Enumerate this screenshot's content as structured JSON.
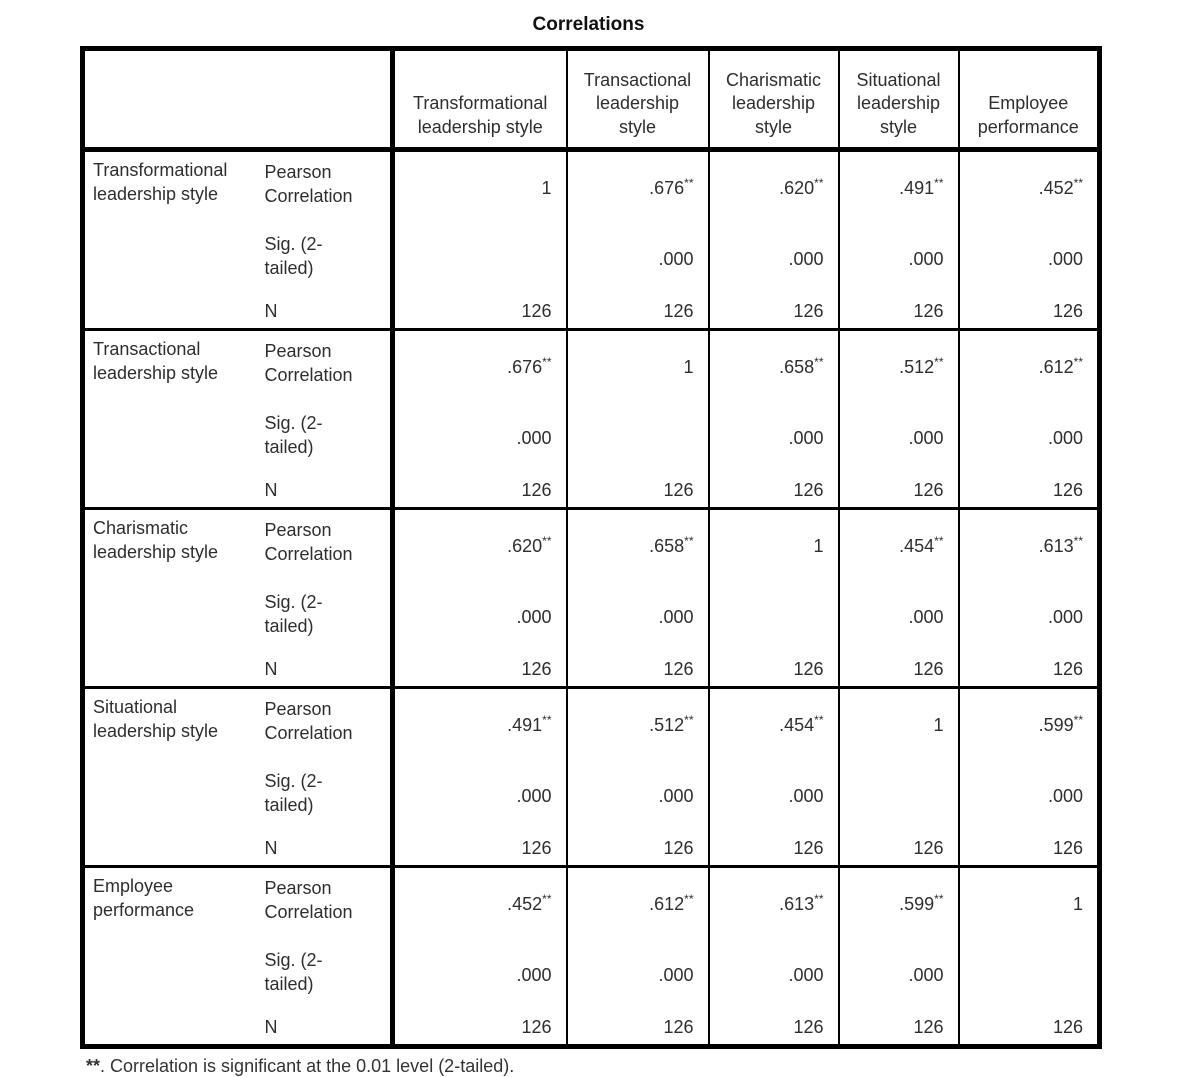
{
  "title": "Correlations",
  "table": {
    "corner": "",
    "columns": [
      "Transformational\nleadership style",
      "Transactional\nleadership\nstyle",
      "Charismatic\nleadership\nstyle",
      "Situational\nleadership\nstyle",
      "Employee\nperformance"
    ],
    "stat_labels": [
      "Pearson\nCorrelation",
      "Sig. (2-\ntailed)",
      "N"
    ],
    "groups": [
      {
        "label": "Transformational\nleadership style",
        "pearson": [
          {
            "v": "1",
            "m": ""
          },
          {
            "v": ".676",
            "m": "**"
          },
          {
            "v": ".620",
            "m": "**"
          },
          {
            "v": ".491",
            "m": "**"
          },
          {
            "v": ".452",
            "m": "**"
          }
        ],
        "sig": [
          "",
          ".000",
          ".000",
          ".000",
          ".000"
        ],
        "n": [
          "126",
          "126",
          "126",
          "126",
          "126"
        ]
      },
      {
        "label": "Transactional\nleadership style",
        "pearson": [
          {
            "v": ".676",
            "m": "**"
          },
          {
            "v": "1",
            "m": ""
          },
          {
            "v": ".658",
            "m": "**"
          },
          {
            "v": ".512",
            "m": "**"
          },
          {
            "v": ".612",
            "m": "**"
          }
        ],
        "sig": [
          ".000",
          "",
          ".000",
          ".000",
          ".000"
        ],
        "n": [
          "126",
          "126",
          "126",
          "126",
          "126"
        ]
      },
      {
        "label": "Charismatic\nleadership style",
        "pearson": [
          {
            "v": ".620",
            "m": "**"
          },
          {
            "v": ".658",
            "m": "**"
          },
          {
            "v": "1",
            "m": ""
          },
          {
            "v": ".454",
            "m": "**"
          },
          {
            "v": ".613",
            "m": "**"
          }
        ],
        "sig": [
          ".000",
          ".000",
          "",
          ".000",
          ".000"
        ],
        "n": [
          "126",
          "126",
          "126",
          "126",
          "126"
        ]
      },
      {
        "label": "Situational\nleadership style",
        "pearson": [
          {
            "v": ".491",
            "m": "**"
          },
          {
            "v": ".512",
            "m": "**"
          },
          {
            "v": ".454",
            "m": "**"
          },
          {
            "v": "1",
            "m": ""
          },
          {
            "v": ".599",
            "m": "**"
          }
        ],
        "sig": [
          ".000",
          ".000",
          ".000",
          "",
          ".000"
        ],
        "n": [
          "126",
          "126",
          "126",
          "126",
          "126"
        ]
      },
      {
        "label": "Employee\nperformance",
        "pearson": [
          {
            "v": ".452",
            "m": "**"
          },
          {
            "v": ".612",
            "m": "**"
          },
          {
            "v": ".613",
            "m": "**"
          },
          {
            "v": ".599",
            "m": "**"
          },
          {
            "v": "1",
            "m": ""
          }
        ],
        "sig": [
          ".000",
          ".000",
          ".000",
          ".000",
          ""
        ],
        "n": [
          "126",
          "126",
          "126",
          "126",
          "126"
        ]
      }
    ]
  },
  "footnote": {
    "marker": "**",
    "text": ". Correlation is significant at the 0.01 level (2-tailed)."
  }
}
